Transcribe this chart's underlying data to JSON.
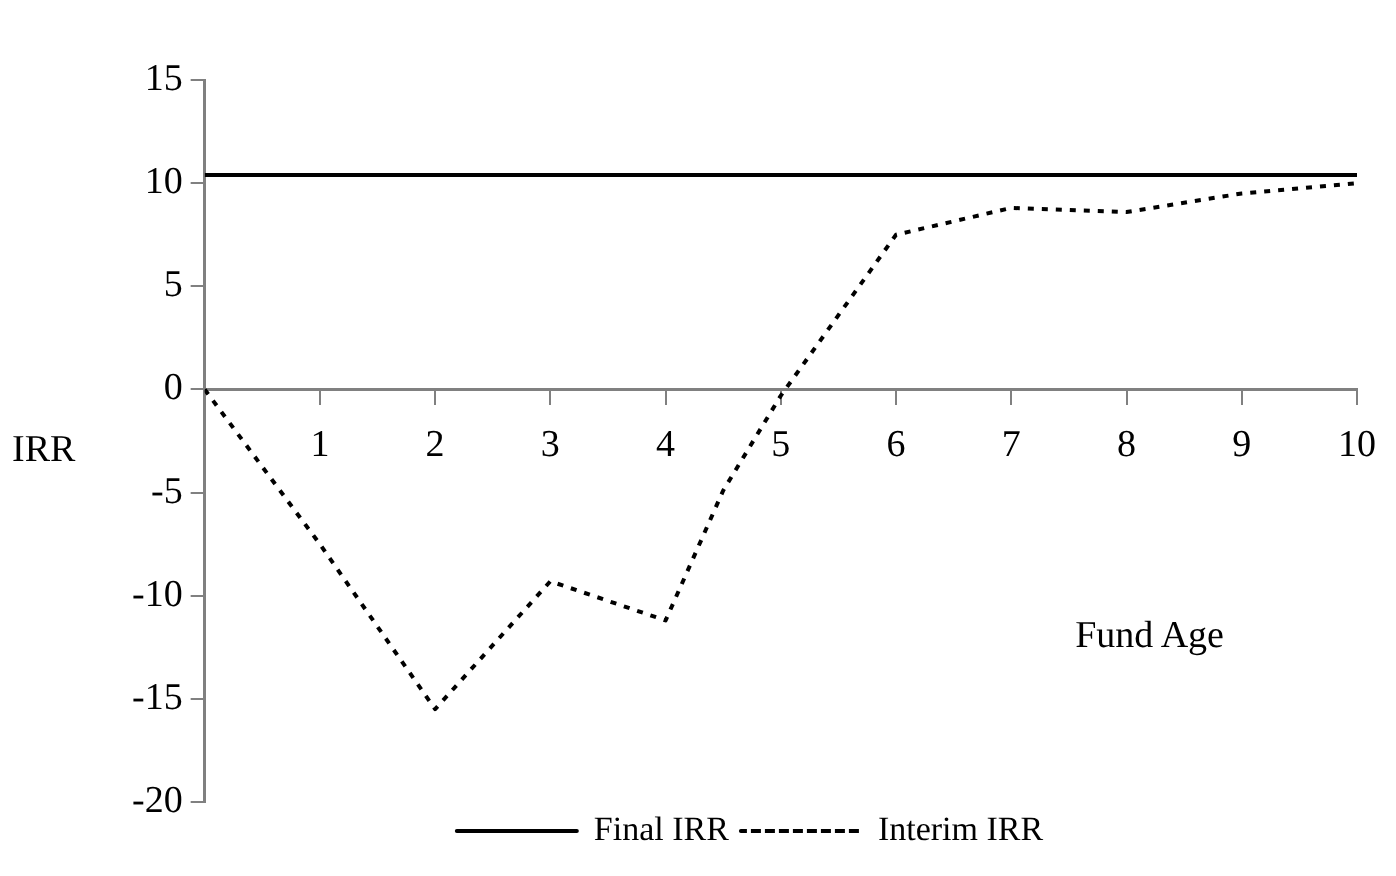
{
  "chart_data": {
    "type": "line",
    "xlabel": "Fund Age",
    "ylabel": "IRR",
    "series": [
      {
        "name": "Final IRR",
        "color": "#000000",
        "line_style": "solid",
        "x": [
          0,
          10
        ],
        "values": [
          10.4,
          10.4
        ]
      },
      {
        "name": "Interim IRR",
        "color": "#000000",
        "line_style": "dotted",
        "x": [
          0,
          1,
          2,
          3,
          4,
          4.5,
          5,
          5.5,
          6,
          7,
          8,
          9,
          10
        ],
        "values": [
          0,
          -7.5,
          -15.5,
          -9.3,
          -11.2,
          -4.9,
          -0.3,
          3.6,
          7.5,
          8.8,
          8.6,
          9.5,
          10.0
        ]
      }
    ],
    "xlim": [
      0,
      10
    ],
    "xticks": [
      {
        "value": 0,
        "label": null
      },
      1,
      2,
      3,
      4,
      5,
      6,
      7,
      8,
      9,
      10
    ],
    "ylim": [
      -20,
      15
    ],
    "yticks": [
      -20,
      -15,
      -10,
      -5,
      0,
      5,
      10,
      15
    ],
    "grid": false,
    "legend": "bottom",
    "marker": "none"
  }
}
